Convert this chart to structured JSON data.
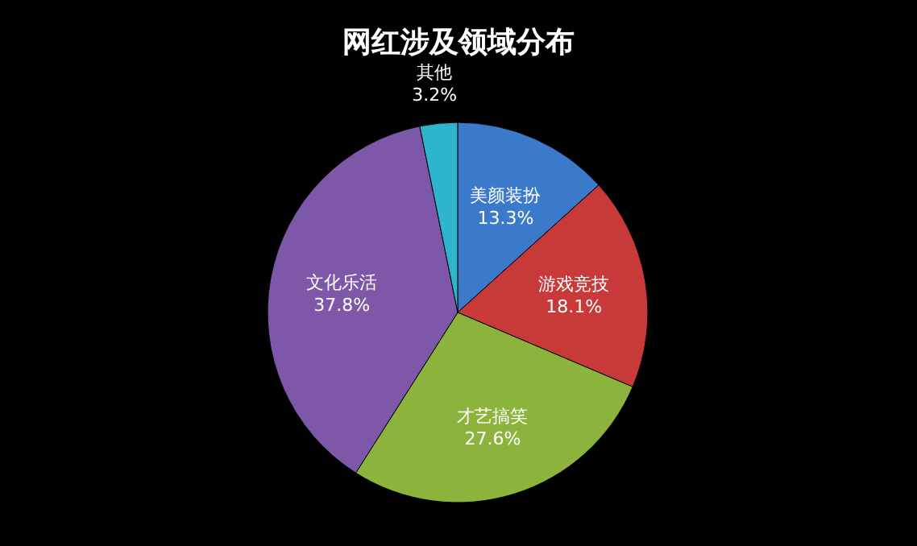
{
  "chart_data": {
    "type": "pie",
    "title": "网红涉及领域分布",
    "categories": [
      "美颜装扮",
      "游戏竞技",
      "才艺搞笑",
      "文化乐活",
      "其他"
    ],
    "values": [
      13.3,
      18.1,
      27.6,
      37.8,
      3.2
    ],
    "colors": [
      "#3b7acb",
      "#c8393a",
      "#8cb43c",
      "#7d58a8",
      "#2fb5cb"
    ],
    "value_labels": [
      "13.3%",
      "18.1%",
      "27.6%",
      "37.8%",
      "3.2%"
    ]
  }
}
